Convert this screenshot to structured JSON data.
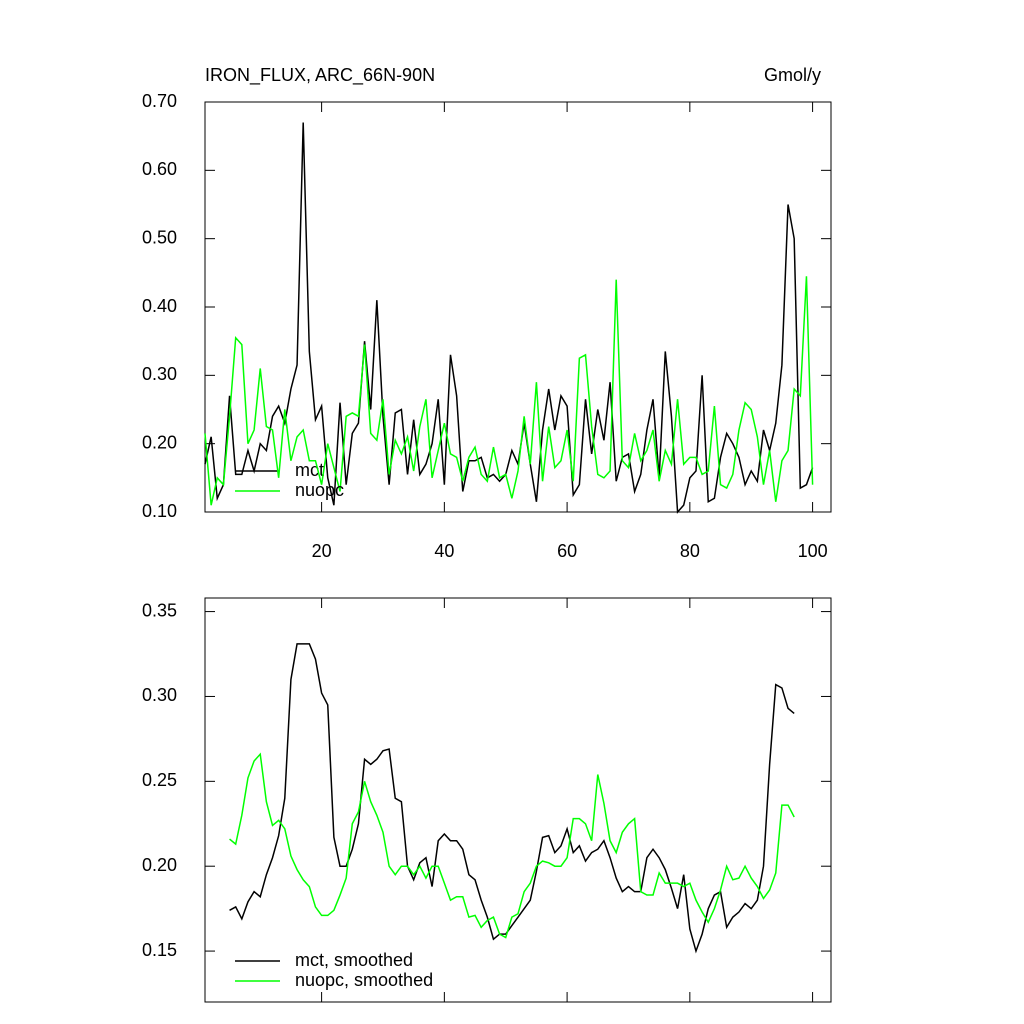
{
  "chart_data": [
    {
      "type": "line",
      "title": "IRON_FLUX, ARC_66N-90N",
      "units": "Gmol/y",
      "x": [
        1,
        2,
        3,
        4,
        5,
        6,
        7,
        8,
        9,
        10,
        11,
        12,
        13,
        14,
        15,
        16,
        17,
        18,
        19,
        20,
        21,
        22,
        23,
        24,
        25,
        26,
        27,
        28,
        29,
        30,
        31,
        32,
        33,
        34,
        35,
        36,
        37,
        38,
        39,
        40,
        41,
        42,
        43,
        44,
        45,
        46,
        47,
        48,
        49,
        50,
        51,
        52,
        53,
        54,
        55,
        56,
        57,
        58,
        59,
        60,
        61,
        62,
        63,
        64,
        65,
        66,
        67,
        68,
        69,
        70,
        71,
        72,
        73,
        74,
        75,
        76,
        77,
        78,
        79,
        80,
        81,
        82,
        83,
        84,
        85,
        86,
        87,
        88,
        89,
        90,
        91,
        92,
        93,
        94,
        95,
        96,
        97,
        98,
        99,
        100
      ],
      "series": [
        {
          "name": "mct",
          "color": "#000000",
          "values": [
            0.17,
            0.21,
            0.12,
            0.14,
            0.27,
            0.155,
            0.155,
            0.19,
            0.16,
            0.2,
            0.19,
            0.24,
            0.255,
            0.23,
            0.28,
            0.315,
            0.67,
            0.335,
            0.235,
            0.255,
            0.15,
            0.11,
            0.26,
            0.14,
            0.215,
            0.23,
            0.35,
            0.25,
            0.41,
            0.24,
            0.14,
            0.245,
            0.25,
            0.155,
            0.235,
            0.155,
            0.17,
            0.2,
            0.265,
            0.14,
            0.33,
            0.27,
            0.13,
            0.175,
            0.175,
            0.18,
            0.15,
            0.155,
            0.145,
            0.155,
            0.19,
            0.17,
            0.23,
            0.17,
            0.115,
            0.22,
            0.28,
            0.22,
            0.27,
            0.255,
            0.125,
            0.14,
            0.265,
            0.185,
            0.25,
            0.205,
            0.29,
            0.145,
            0.18,
            0.185,
            0.13,
            0.155,
            0.22,
            0.265,
            0.15,
            0.335,
            0.24,
            0.1,
            0.11,
            0.15,
            0.16,
            0.3,
            0.115,
            0.12,
            0.18,
            0.215,
            0.2,
            0.18,
            0.14,
            0.16,
            0.145,
            0.22,
            0.19,
            0.23,
            0.315,
            0.55,
            0.5,
            0.135,
            0.14,
            0.165
          ]
        },
        {
          "name": "nuopc",
          "color": "#00ff00",
          "values": [
            0.215,
            0.11,
            0.15,
            0.14,
            0.24,
            0.355,
            0.345,
            0.2,
            0.22,
            0.31,
            0.225,
            0.22,
            0.15,
            0.25,
            0.175,
            0.21,
            0.22,
            0.175,
            0.175,
            0.14,
            0.2,
            0.165,
            0.13,
            0.24,
            0.245,
            0.24,
            0.345,
            0.215,
            0.205,
            0.265,
            0.155,
            0.205,
            0.185,
            0.21,
            0.16,
            0.225,
            0.265,
            0.15,
            0.19,
            0.23,
            0.185,
            0.18,
            0.145,
            0.18,
            0.195,
            0.155,
            0.145,
            0.195,
            0.15,
            0.155,
            0.12,
            0.16,
            0.24,
            0.17,
            0.29,
            0.145,
            0.225,
            0.165,
            0.175,
            0.22,
            0.145,
            0.325,
            0.33,
            0.225,
            0.155,
            0.15,
            0.16,
            0.44,
            0.175,
            0.165,
            0.215,
            0.175,
            0.19,
            0.22,
            0.145,
            0.19,
            0.17,
            0.265,
            0.17,
            0.18,
            0.18,
            0.155,
            0.16,
            0.255,
            0.14,
            0.135,
            0.155,
            0.22,
            0.26,
            0.25,
            0.21,
            0.14,
            0.19,
            0.115,
            0.175,
            0.19,
            0.28,
            0.27,
            0.445,
            0.14
          ]
        }
      ],
      "xlim": [
        1,
        103
      ],
      "xticks": [
        20,
        40,
        60,
        80,
        100
      ],
      "ylim": [
        0.1,
        0.7
      ],
      "yticks": [
        {
          "value": 0.1,
          "label": "0.10"
        },
        {
          "value": 0.2,
          "label": "0.20"
        },
        {
          "value": 0.3,
          "label": "0.30"
        },
        {
          "value": 0.4,
          "label": "0.40"
        },
        {
          "value": 0.5,
          "label": "0.50"
        },
        {
          "value": 0.6,
          "label": "0.60"
        },
        {
          "value": 0.7,
          "label": "0.70"
        }
      ],
      "legend": "lower left",
      "show_xtick_labels": true
    },
    {
      "type": "line",
      "x": [
        5,
        6,
        7,
        8,
        9,
        10,
        11,
        12,
        13,
        14,
        15,
        16,
        17,
        18,
        19,
        20,
        21,
        22,
        23,
        24,
        25,
        26,
        27,
        28,
        29,
        30,
        31,
        32,
        33,
        34,
        35,
        36,
        37,
        38,
        39,
        40,
        41,
        42,
        43,
        44,
        45,
        46,
        47,
        48,
        49,
        50,
        51,
        52,
        53,
        54,
        55,
        56,
        57,
        58,
        59,
        60,
        61,
        62,
        63,
        64,
        65,
        66,
        67,
        68,
        69,
        70,
        71,
        72,
        73,
        74,
        75,
        76,
        77,
        78,
        79,
        80,
        81,
        82,
        83,
        84,
        85,
        86,
        87,
        88,
        89,
        90,
        91,
        92,
        93,
        94,
        95,
        96,
        97
      ],
      "series": [
        {
          "name": "mct, smoothed",
          "color": "#000000",
          "values": [
            0.174,
            0.176,
            0.169,
            0.179,
            0.185,
            0.182,
            0.195,
            0.205,
            0.218,
            0.24,
            0.31,
            0.331,
            0.331,
            0.331,
            0.322,
            0.302,
            0.295,
            0.217,
            0.2,
            0.2,
            0.21,
            0.225,
            0.263,
            0.26,
            0.263,
            0.268,
            0.269,
            0.24,
            0.238,
            0.2,
            0.192,
            0.202,
            0.205,
            0.188,
            0.215,
            0.219,
            0.215,
            0.215,
            0.21,
            0.195,
            0.192,
            0.18,
            0.17,
            0.157,
            0.16,
            0.16,
            0.165,
            0.17,
            0.175,
            0.18,
            0.197,
            0.217,
            0.218,
            0.208,
            0.212,
            0.222,
            0.208,
            0.212,
            0.203,
            0.208,
            0.21,
            0.215,
            0.205,
            0.193,
            0.185,
            0.188,
            0.185,
            0.185,
            0.205,
            0.21,
            0.205,
            0.198,
            0.187,
            0.175,
            0.195,
            0.163,
            0.15,
            0.16,
            0.175,
            0.183,
            0.185,
            0.164,
            0.17,
            0.173,
            0.178,
            0.175,
            0.18,
            0.2,
            0.26,
            0.307,
            0.305,
            0.293,
            0.29
          ]
        },
        {
          "name": "nuopc, smoothed",
          "color": "#00ff00",
          "values": [
            0.216,
            0.213,
            0.23,
            0.252,
            0.262,
            0.266,
            0.238,
            0.224,
            0.227,
            0.222,
            0.206,
            0.198,
            0.192,
            0.188,
            0.176,
            0.171,
            0.171,
            0.174,
            0.183,
            0.193,
            0.225,
            0.232,
            0.25,
            0.238,
            0.23,
            0.22,
            0.2,
            0.195,
            0.2,
            0.2,
            0.195,
            0.2,
            0.193,
            0.2,
            0.2,
            0.19,
            0.18,
            0.182,
            0.182,
            0.17,
            0.171,
            0.164,
            0.168,
            0.17,
            0.16,
            0.158,
            0.17,
            0.172,
            0.185,
            0.19,
            0.2,
            0.203,
            0.202,
            0.2,
            0.2,
            0.205,
            0.228,
            0.228,
            0.225,
            0.215,
            0.254,
            0.237,
            0.215,
            0.208,
            0.22,
            0.225,
            0.228,
            0.185,
            0.183,
            0.183,
            0.196,
            0.19,
            0.19,
            0.19,
            0.188,
            0.19,
            0.18,
            0.173,
            0.167,
            0.175,
            0.186,
            0.2,
            0.192,
            0.193,
            0.2,
            0.193,
            0.188,
            0.181,
            0.186,
            0.196,
            0.236,
            0.236,
            0.229
          ]
        }
      ],
      "xlim": [
        1,
        103
      ],
      "xticks": [
        20,
        40,
        60,
        80,
        100
      ],
      "ylim": [
        0.12,
        0.358
      ],
      "yticks": [
        {
          "value": 0.15,
          "label": "0.15"
        },
        {
          "value": 0.2,
          "label": "0.20"
        },
        {
          "value": 0.25,
          "label": "0.25"
        },
        {
          "value": 0.3,
          "label": "0.30"
        },
        {
          "value": 0.35,
          "label": "0.35"
        }
      ],
      "legend": "lower left",
      "show_xtick_labels": false
    }
  ]
}
